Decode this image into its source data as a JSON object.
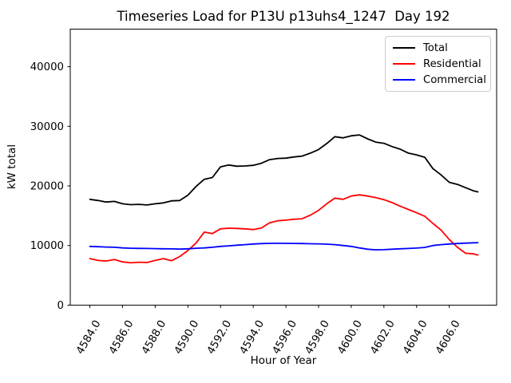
{
  "chart_data": {
    "type": "line",
    "title": "Timeseries Load for P13U p13uhs4_1247  Day 192",
    "xlabel": "Hour of Year",
    "ylabel": "kW total",
    "grid": false,
    "legend_position": "upper right",
    "xlim": [
      4582.8,
      4608.9
    ],
    "ylim": [
      0,
      46300
    ],
    "xticks": {
      "values": [
        4584,
        4586,
        4588,
        4590,
        4592,
        4594,
        4596,
        4598,
        4600,
        4602,
        4604,
        4606
      ],
      "labels": [
        "4584.0",
        "4586.0",
        "4588.0",
        "4590.0",
        "4592.0",
        "4594.0",
        "4596.0",
        "4598.0",
        "4600.0",
        "4602.0",
        "4604.0",
        "4606.0"
      ]
    },
    "yticks": {
      "values": [
        0,
        10000,
        20000,
        30000,
        40000
      ],
      "labels": [
        "0",
        "10000",
        "20000",
        "30000",
        "40000"
      ]
    },
    "x": [
      4584.0,
      4584.5,
      4585.0,
      4585.5,
      4586.0,
      4586.5,
      4587.0,
      4587.5,
      4588.0,
      4588.5,
      4589.0,
      4589.5,
      4590.0,
      4590.5,
      4591.0,
      4591.5,
      4592.0,
      4592.5,
      4593.0,
      4593.5,
      4594.0,
      4594.5,
      4595.0,
      4595.5,
      4596.0,
      4596.5,
      4597.0,
      4597.5,
      4598.0,
      4598.5,
      4599.0,
      4599.5,
      4600.0,
      4600.5,
      4601.0,
      4601.5,
      4602.0,
      4602.5,
      4603.0,
      4603.5,
      4604.0,
      4604.5,
      4605.0,
      4605.5,
      4606.0,
      4606.5,
      4607.0,
      4607.5,
      4607.75
    ],
    "series": [
      {
        "name": "Total",
        "color": "#000000",
        "values": [
          17750,
          17550,
          17300,
          17400,
          17000,
          16850,
          16900,
          16800,
          17000,
          17150,
          17500,
          17550,
          18450,
          19900,
          21100,
          21400,
          23200,
          23500,
          23300,
          23350,
          23450,
          23800,
          24400,
          24600,
          24650,
          24850,
          25000,
          25500,
          26100,
          27100,
          28250,
          28050,
          28400,
          28550,
          27900,
          27350,
          27150,
          26600,
          26150,
          25500,
          25200,
          24800,
          22900,
          21850,
          20600,
          20250,
          19700,
          19150,
          19000
        ]
      },
      {
        "name": "Residential",
        "color": "#ff0000",
        "values": [
          7800,
          7500,
          7400,
          7650,
          7250,
          7100,
          7200,
          7150,
          7500,
          7800,
          7450,
          8150,
          9150,
          10400,
          12250,
          12000,
          12800,
          12900,
          12870,
          12800,
          12680,
          12950,
          13800,
          14150,
          14250,
          14400,
          14500,
          15100,
          15900,
          17000,
          17950,
          17750,
          18300,
          18500,
          18300,
          18050,
          17700,
          17200,
          16600,
          16050,
          15500,
          14900,
          13700,
          12600,
          11000,
          9700,
          8700,
          8600,
          8400
        ]
      },
      {
        "name": "Commercial",
        "color": "#0000ff",
        "values": [
          9850,
          9800,
          9750,
          9700,
          9600,
          9550,
          9520,
          9500,
          9480,
          9450,
          9430,
          9400,
          9450,
          9550,
          9600,
          9700,
          9850,
          9950,
          10050,
          10150,
          10250,
          10320,
          10360,
          10370,
          10360,
          10350,
          10330,
          10300,
          10280,
          10220,
          10150,
          10000,
          9850,
          9600,
          9380,
          9270,
          9300,
          9380,
          9450,
          9500,
          9570,
          9680,
          10000,
          10150,
          10250,
          10330,
          10400,
          10450,
          10480
        ]
      }
    ]
  }
}
